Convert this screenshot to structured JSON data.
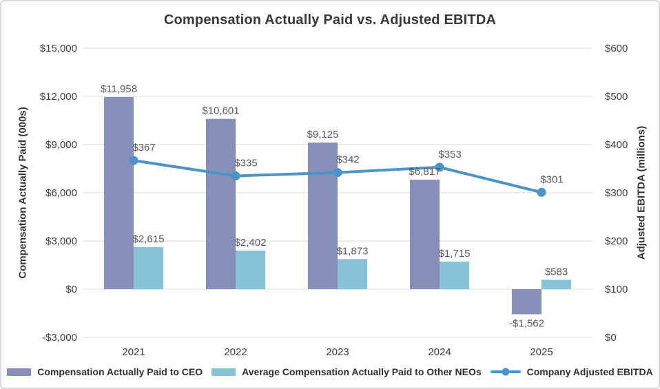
{
  "chart_data": {
    "type": "combo-bar-line",
    "title": "Compensation Actually Paid vs. Adjusted EBITDA",
    "categories": [
      "2021",
      "2022",
      "2023",
      "2024",
      "2025"
    ],
    "bar_series": [
      {
        "name": "Compensation Actually Paid to CEO",
        "axis": "left",
        "color": "#878EB8",
        "values": [
          11958,
          10601,
          9125,
          6817,
          -1562
        ],
        "labels": [
          "$11,958",
          "$10,601",
          "$9,125",
          "$6,817",
          "-$1,562"
        ]
      },
      {
        "name": "Average Compensation Actually Paid to Other NEOs",
        "axis": "left",
        "color": "#85C2D6",
        "values": [
          2615,
          2402,
          1873,
          1715,
          583
        ],
        "labels": [
          "$2,615",
          "$2,402",
          "$1,873",
          "$1,715",
          "$583"
        ]
      }
    ],
    "line_series": [
      {
        "name": "Company Adjusted EBITDA",
        "axis": "right",
        "color": "#4B94C8",
        "values": [
          367,
          335,
          342,
          353,
          301
        ],
        "labels": [
          "$367",
          "$335",
          "$342",
          "$353",
          "$301"
        ]
      }
    ],
    "left_axis": {
      "label": "Compensation Actually Paid (000s)",
      "min": -3000,
      "max": 15000,
      "step": 3000,
      "ticks": [
        "$15,000",
        "$12,000",
        "$9,000",
        "$6,000",
        "$3,000",
        "$0",
        "-$3,000"
      ]
    },
    "right_axis": {
      "label": "Adjusted EBITDA (millions)",
      "min": 0,
      "max": 600,
      "step": 100,
      "ticks": [
        "$600",
        "$500",
        "$400",
        "$300",
        "$200",
        "$100",
        "$0"
      ]
    },
    "grid": true,
    "legend_position": "bottom"
  },
  "colors": {
    "grid": "#D9D9D9",
    "tick_text": "#3D3D3D",
    "data_label": "#5A5A5A",
    "title_text": "#383838",
    "axis_title_text": "#333333",
    "legend_text": "#2E2E2E",
    "figure_border": "#D9D9D9",
    "background": "#FFFFFF"
  }
}
